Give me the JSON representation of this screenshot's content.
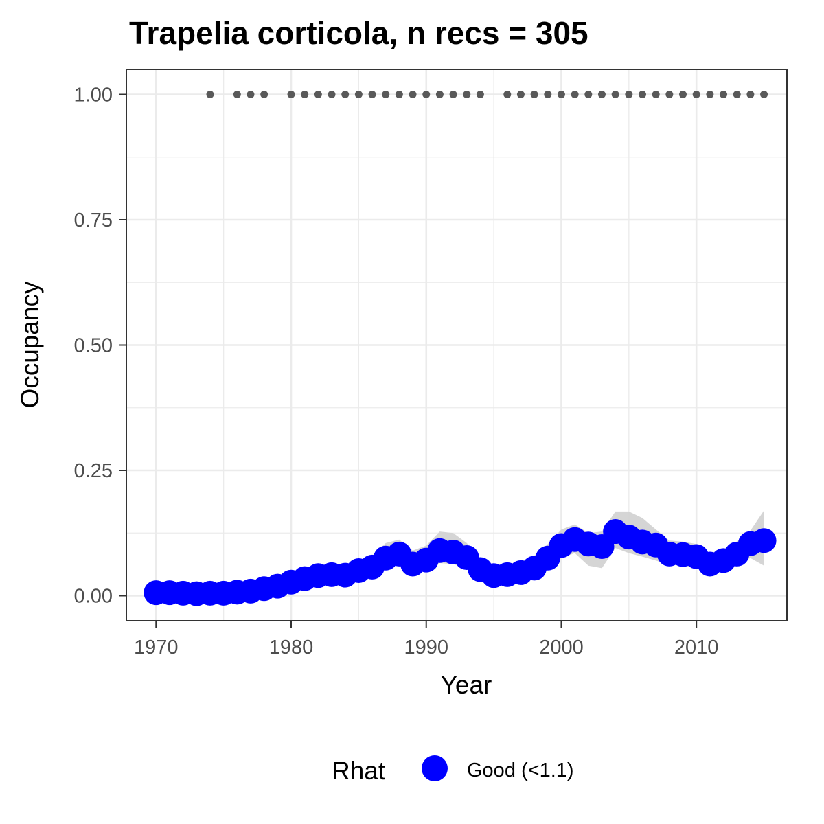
{
  "chart_data": {
    "type": "line",
    "title": "Trapelia corticola, n recs = 305",
    "xlabel": "Year",
    "ylabel": "Occupancy",
    "xlim": [
      1967.8,
      2016.7
    ],
    "ylim": [
      -0.05,
      1.05
    ],
    "x_ticks": [
      1970,
      1980,
      1990,
      2000,
      2010
    ],
    "x_tick_labels": [
      "1970",
      "1980",
      "1990",
      "2000",
      "2010"
    ],
    "y_ticks": [
      0,
      0.25,
      0.5,
      0.75,
      1
    ],
    "y_tick_labels": [
      "0.00",
      "0.25",
      "0.50",
      "0.75",
      "1.00"
    ],
    "grid": true,
    "legend": {
      "title": "Rhat",
      "position": "bottom",
      "entries": [
        {
          "label": "Good (<1.1)",
          "color": "#0000ff"
        }
      ]
    },
    "series": [
      {
        "name": "Good (<1.1)",
        "color": "#0000ff",
        "x": [
          1970,
          1971,
          1972,
          1973,
          1974,
          1975,
          1976,
          1977,
          1978,
          1979,
          1980,
          1981,
          1982,
          1983,
          1984,
          1985,
          1986,
          1987,
          1988,
          1989,
          1990,
          1991,
          1992,
          1993,
          1994,
          1995,
          1996,
          1997,
          1998,
          1999,
          2000,
          2001,
          2002,
          2003,
          2004,
          2005,
          2006,
          2007,
          2008,
          2009,
          2010,
          2011,
          2012,
          2013,
          2014,
          2015
        ],
        "y": [
          0.006,
          0.006,
          0.005,
          0.004,
          0.005,
          0.005,
          0.007,
          0.009,
          0.014,
          0.019,
          0.027,
          0.034,
          0.04,
          0.042,
          0.041,
          0.05,
          0.057,
          0.075,
          0.083,
          0.063,
          0.071,
          0.09,
          0.087,
          0.076,
          0.052,
          0.04,
          0.042,
          0.046,
          0.055,
          0.075,
          0.1,
          0.112,
          0.103,
          0.098,
          0.128,
          0.117,
          0.107,
          0.101,
          0.083,
          0.082,
          0.078,
          0.063,
          0.07,
          0.083,
          0.104,
          0.11
        ],
        "lower": [
          0.001,
          0.001,
          0.001,
          0.001,
          0.001,
          0.001,
          0.001,
          0.002,
          0.005,
          0.009,
          0.015,
          0.02,
          0.025,
          0.027,
          0.026,
          0.034,
          0.04,
          0.055,
          0.062,
          0.044,
          0.05,
          0.065,
          0.063,
          0.054,
          0.035,
          0.025,
          0.027,
          0.03,
          0.037,
          0.055,
          0.075,
          0.085,
          0.06,
          0.055,
          0.095,
          0.085,
          0.078,
          0.07,
          0.062,
          0.06,
          0.056,
          0.045,
          0.052,
          0.062,
          0.075,
          0.06
        ],
        "upper": [
          0.012,
          0.012,
          0.01,
          0.01,
          0.011,
          0.012,
          0.014,
          0.018,
          0.025,
          0.032,
          0.042,
          0.052,
          0.06,
          0.062,
          0.06,
          0.07,
          0.08,
          0.105,
          0.112,
          0.09,
          0.1,
          0.128,
          0.125,
          0.105,
          0.075,
          0.06,
          0.062,
          0.068,
          0.08,
          0.103,
          0.132,
          0.142,
          0.125,
          0.128,
          0.168,
          0.168,
          0.155,
          0.132,
          0.11,
          0.108,
          0.103,
          0.085,
          0.092,
          0.108,
          0.13,
          0.17
        ]
      }
    ],
    "records": {
      "color": "#595959",
      "y": 1.0,
      "x": [
        1974,
        1976,
        1977,
        1978,
        1980,
        1981,
        1982,
        1983,
        1984,
        1985,
        1986,
        1987,
        1988,
        1989,
        1990,
        1991,
        1992,
        1993,
        1994,
        1996,
        1997,
        1998,
        1999,
        2000,
        2001,
        2002,
        2003,
        2004,
        2005,
        2006,
        2007,
        2008,
        2009,
        2010,
        2011,
        2012,
        2013,
        2014,
        2015
      ]
    },
    "ribbon_color": "#d3d3d3"
  }
}
